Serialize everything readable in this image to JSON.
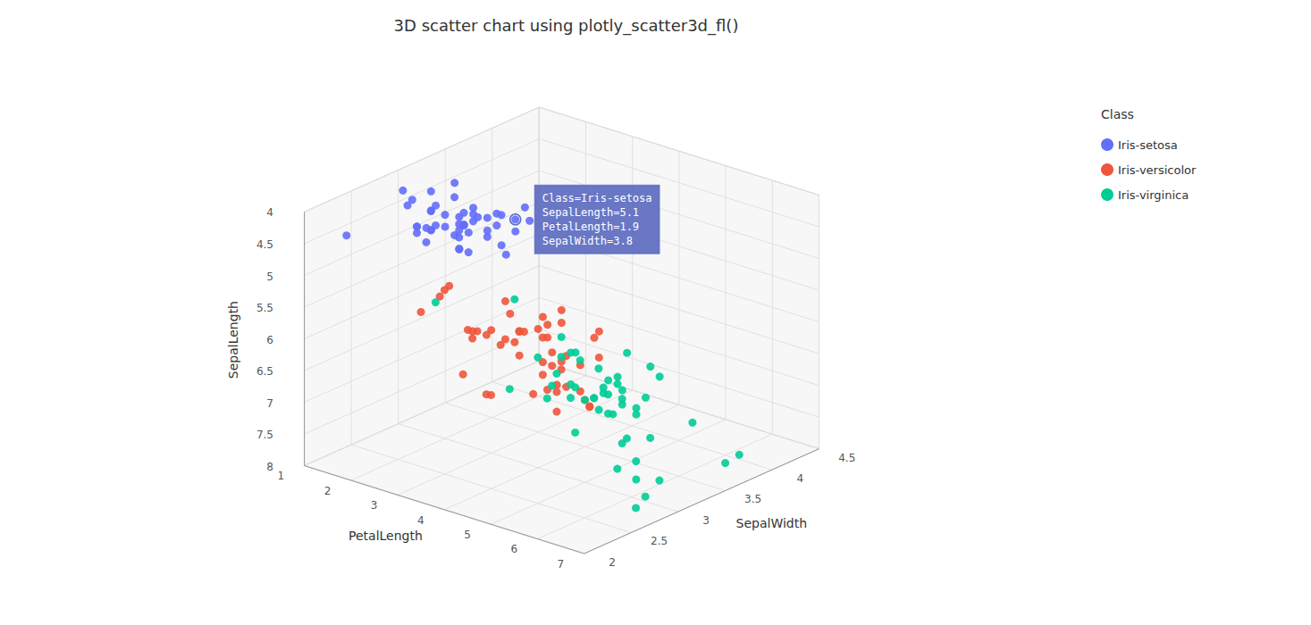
{
  "chart_data": {
    "type": "scatter3d",
    "title": "3D scatter chart using plotly_scatter3d_fl()",
    "xlabel": "PetalLength",
    "ylabel": "SepalWidth",
    "zlabel": "SepalLength",
    "xlim": [
      1,
      7
    ],
    "ylim": [
      2.0,
      4.5
    ],
    "zlim": [
      4.0,
      8.0
    ],
    "xticks": [
      1,
      2,
      3,
      4,
      5,
      6,
      7
    ],
    "yticks": [
      2.0,
      2.5,
      3.0,
      3.5,
      4.0,
      4.5
    ],
    "zticks": [
      4.0,
      4.5,
      5.0,
      5.5,
      6.0,
      6.5,
      7.0,
      7.5,
      8.0
    ],
    "grid": true,
    "legend": "upper right",
    "legend_title": "Class",
    "annotations": [
      {
        "text": "Class=Iris-setosa\nSepalLength=5.1\nPetalLength=1.9\nSepalWidth=3.8",
        "x": 1.9,
        "y": 3.8,
        "z": 5.1
      }
    ],
    "series": [
      {
        "name": "Iris-setosa",
        "color": "#636efa",
        "x": [
          1.4,
          1.4,
          1.3,
          1.5,
          1.4,
          1.7,
          1.4,
          1.5,
          1.4,
          1.5,
          1.5,
          1.6,
          1.4,
          1.1,
          1.2,
          1.5,
          1.3,
          1.4,
          1.7,
          1.5,
          1.7,
          1.5,
          1.0,
          1.7,
          1.9,
          1.6,
          1.6,
          1.5,
          1.4,
          1.6,
          1.6,
          1.5,
          1.5,
          1.4,
          1.5,
          1.2,
          1.3,
          1.4,
          1.3,
          1.5,
          1.3,
          1.3,
          1.3,
          1.6,
          1.9,
          1.4,
          1.6,
          1.4,
          1.5,
          1.4
        ],
        "y": [
          3.5,
          3.0,
          3.2,
          3.1,
          3.6,
          3.9,
          3.4,
          3.4,
          2.9,
          3.1,
          3.7,
          3.4,
          3.0,
          3.0,
          4.0,
          4.4,
          3.9,
          3.5,
          3.8,
          3.8,
          3.4,
          3.7,
          3.6,
          3.3,
          3.4,
          3.0,
          3.4,
          3.5,
          3.4,
          3.2,
          3.1,
          3.4,
          4.1,
          4.2,
          3.1,
          3.2,
          3.5,
          3.6,
          3.0,
          3.4,
          3.5,
          2.3,
          3.2,
          3.5,
          3.8,
          3.0,
          3.8,
          3.2,
          3.7,
          3.3
        ],
        "z": [
          5.1,
          4.9,
          4.7,
          4.6,
          5.0,
          5.4,
          4.6,
          5.0,
          4.4,
          4.9,
          5.4,
          4.8,
          4.8,
          4.3,
          5.8,
          5.7,
          5.4,
          5.1,
          5.7,
          5.1,
          5.4,
          5.1,
          4.6,
          5.1,
          4.8,
          5.0,
          5.0,
          5.2,
          5.2,
          4.7,
          4.8,
          5.4,
          5.2,
          5.5,
          4.9,
          5.0,
          5.5,
          4.9,
          4.4,
          5.1,
          5.0,
          4.5,
          4.4,
          5.0,
          5.1,
          4.8,
          5.1,
          4.6,
          5.3,
          5.0
        ]
      },
      {
        "name": "Iris-versicolor",
        "color": "#ef553b",
        "x": [
          4.7,
          4.5,
          4.9,
          4.0,
          4.6,
          4.5,
          4.7,
          3.3,
          4.6,
          3.9,
          3.5,
          4.2,
          4.0,
          4.7,
          3.6,
          4.4,
          4.5,
          4.1,
          4.5,
          3.9,
          4.8,
          4.0,
          4.9,
          4.7,
          4.3,
          4.4,
          4.8,
          5.0,
          4.5,
          3.5,
          3.8,
          3.7,
          3.9,
          5.1,
          4.5,
          4.5,
          4.7,
          4.4,
          4.1,
          4.0,
          4.4,
          4.6,
          4.0,
          3.3,
          4.2,
          4.2,
          4.2,
          4.3,
          3.0,
          4.1
        ],
        "y": [
          3.2,
          3.2,
          3.1,
          2.3,
          2.8,
          2.8,
          3.3,
          2.4,
          2.9,
          2.7,
          2.0,
          3.0,
          2.2,
          2.9,
          2.9,
          3.1,
          3.0,
          2.7,
          2.2,
          2.5,
          3.2,
          2.8,
          2.5,
          2.8,
          2.9,
          3.0,
          2.8,
          3.0,
          2.9,
          2.6,
          2.4,
          2.4,
          2.7,
          2.7,
          3.0,
          3.4,
          3.1,
          2.3,
          3.0,
          2.5,
          2.6,
          3.0,
          2.6,
          2.3,
          2.7,
          3.0,
          2.9,
          2.9,
          2.5,
          2.8
        ],
        "z": [
          7.0,
          6.4,
          6.9,
          5.5,
          6.5,
          5.7,
          6.3,
          4.9,
          6.6,
          5.2,
          5.0,
          5.9,
          6.0,
          6.1,
          5.6,
          6.7,
          5.6,
          5.8,
          6.2,
          5.6,
          5.9,
          6.1,
          6.3,
          6.1,
          6.4,
          6.6,
          6.8,
          6.7,
          6.0,
          5.7,
          5.5,
          5.5,
          5.8,
          6.0,
          5.4,
          6.0,
          6.7,
          6.3,
          5.6,
          5.5,
          5.5,
          6.1,
          5.8,
          5.0,
          5.6,
          5.7,
          5.7,
          6.2,
          5.1,
          5.7
        ]
      },
      {
        "name": "Iris-virginica",
        "color": "#00cc96",
        "x": [
          6.0,
          5.1,
          5.9,
          5.6,
          5.8,
          6.6,
          4.5,
          6.3,
          5.8,
          6.1,
          5.1,
          5.3,
          5.5,
          5.0,
          5.1,
          5.3,
          5.5,
          6.7,
          6.9,
          5.0,
          5.7,
          4.9,
          6.7,
          4.9,
          5.7,
          6.0,
          4.8,
          4.9,
          5.6,
          5.8,
          6.1,
          6.4,
          5.6,
          5.1,
          5.6,
          6.1,
          5.6,
          5.5,
          4.8,
          5.4,
          5.6,
          5.1,
          5.9,
          5.7,
          5.2,
          5.0,
          5.2,
          5.4,
          5.1,
          1.8
        ],
        "y": [
          3.3,
          2.7,
          3.0,
          2.9,
          3.0,
          3.0,
          2.5,
          2.9,
          2.5,
          3.6,
          3.2,
          2.7,
          3.0,
          2.5,
          2.8,
          3.2,
          3.0,
          3.8,
          2.6,
          2.2,
          3.2,
          2.8,
          2.8,
          2.7,
          3.3,
          3.2,
          2.8,
          3.0,
          2.8,
          3.0,
          2.8,
          3.8,
          2.8,
          2.8,
          2.6,
          3.0,
          3.4,
          3.1,
          3.0,
          3.1,
          3.1,
          3.1,
          2.7,
          3.2,
          3.3,
          3.0,
          2.5,
          3.0,
          3.4,
          3.0
        ],
        "z": [
          6.3,
          5.8,
          7.1,
          6.3,
          6.5,
          7.6,
          4.9,
          7.3,
          6.7,
          7.2,
          6.5,
          6.4,
          6.8,
          5.7,
          5.8,
          6.4,
          6.5,
          7.7,
          7.7,
          6.0,
          6.9,
          5.6,
          7.7,
          6.3,
          6.7,
          7.2,
          6.2,
          6.1,
          6.4,
          7.2,
          7.4,
          7.9,
          6.4,
          6.3,
          6.1,
          7.7,
          6.3,
          6.4,
          6.0,
          6.9,
          6.7,
          6.9,
          5.8,
          6.8,
          6.7,
          6.7,
          6.3,
          6.5,
          6.2,
          5.9
        ]
      }
    ]
  }
}
